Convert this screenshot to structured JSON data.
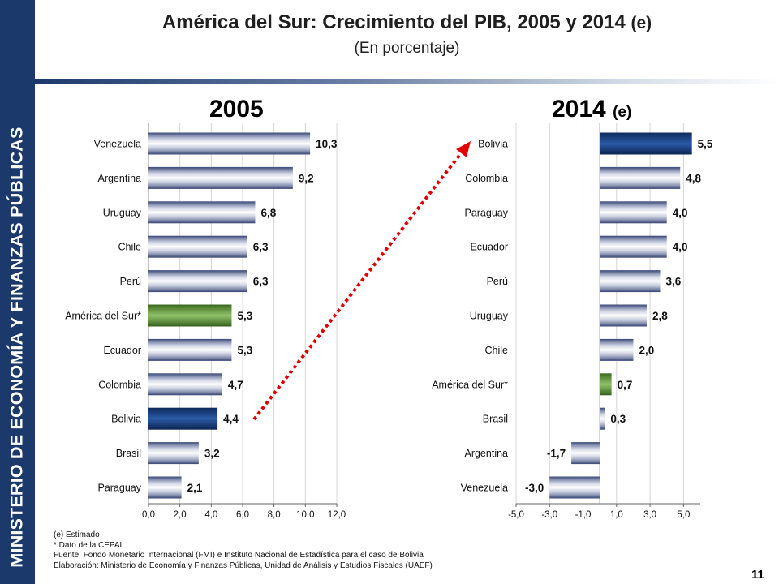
{
  "sidebar": {
    "text": "MINISTERIO DE ECONOMÍA Y FINANZAS PÚBLICAS"
  },
  "header": {
    "title_main": "América del Sur: Crecimiento del PIB, 2005 y 2014",
    "title_suffix": "(e)",
    "subtitle": "(En porcentaje)"
  },
  "colors": {
    "sidebar": "#1b3a6b",
    "highlight_blue": "#1a3f7c",
    "highlight_green": "#5a8a2e",
    "bar_default": "#b9c0d4",
    "arrow": "#e00000"
  },
  "chart_data": [
    {
      "type": "bar",
      "orientation": "horizontal",
      "title": "2005",
      "title_suffix": "",
      "categories": [
        "Venezuela",
        "Argentina",
        "Uruguay",
        "Chile",
        "Perú",
        "América del Sur*",
        "Ecuador",
        "Colombia",
        "Bolivia",
        "Brasil",
        "Paraguay"
      ],
      "values": [
        10.3,
        9.2,
        6.8,
        6.3,
        6.3,
        5.3,
        5.3,
        4.7,
        4.4,
        3.2,
        2.1
      ],
      "value_labels": [
        "10,3",
        "9,2",
        "6,8",
        "6,3",
        "6,3",
        "5,3",
        "5,3",
        "4,7",
        "4,4",
        "3,2",
        "2,1"
      ],
      "highlight": {
        "Bolivia": "blue",
        "América del Sur*": "green"
      },
      "xlim": [
        0,
        12
      ],
      "xticks": [
        0,
        2,
        4,
        6,
        8,
        10,
        12
      ],
      "xtick_labels": [
        "0,0",
        "2,0",
        "4,0",
        "6,0",
        "8,0",
        "10,0",
        "12,0"
      ],
      "grid": true
    },
    {
      "type": "bar",
      "orientation": "horizontal",
      "title": "2014",
      "title_suffix": "(e)",
      "categories": [
        "Bolivia",
        "Colombia",
        "Paraguay",
        "Ecuador",
        "Perú",
        "Uruguay",
        "Chile",
        "América del Sur*",
        "Brasil",
        "Argentina",
        "Venezuela"
      ],
      "values": [
        5.5,
        4.8,
        4.0,
        4.0,
        3.6,
        2.8,
        2.0,
        0.7,
        0.3,
        -1.7,
        -3.0
      ],
      "value_labels": [
        "5,5",
        "4,8",
        "4,0",
        "4,0",
        "3,6",
        "2,8",
        "2,0",
        "0,7",
        "0,3",
        "-1,7",
        "-3,0"
      ],
      "highlight": {
        "Bolivia": "blue",
        "América del Sur*": "green"
      },
      "xlim": [
        -5,
        6
      ],
      "xticks": [
        -5,
        -3,
        -1,
        1,
        3,
        5
      ],
      "xtick_labels": [
        "-5,0",
        "-3,0",
        "-1,0",
        "1,0",
        "3,0",
        "5,0"
      ],
      "grid": true
    }
  ],
  "footnotes": [
    "(e) Estimado",
    "* Dato de la CEPAL",
    "Fuente: Fondo Monetario Internacional  (FMI) e Instituto Nacional de Estadística para el caso de Bolivia",
    "Elaboración: Ministerio de Economía y Finanzas Públicas, Unidad de Análisis y Estudios Fiscales (UAEF)"
  ],
  "page_number": "11"
}
